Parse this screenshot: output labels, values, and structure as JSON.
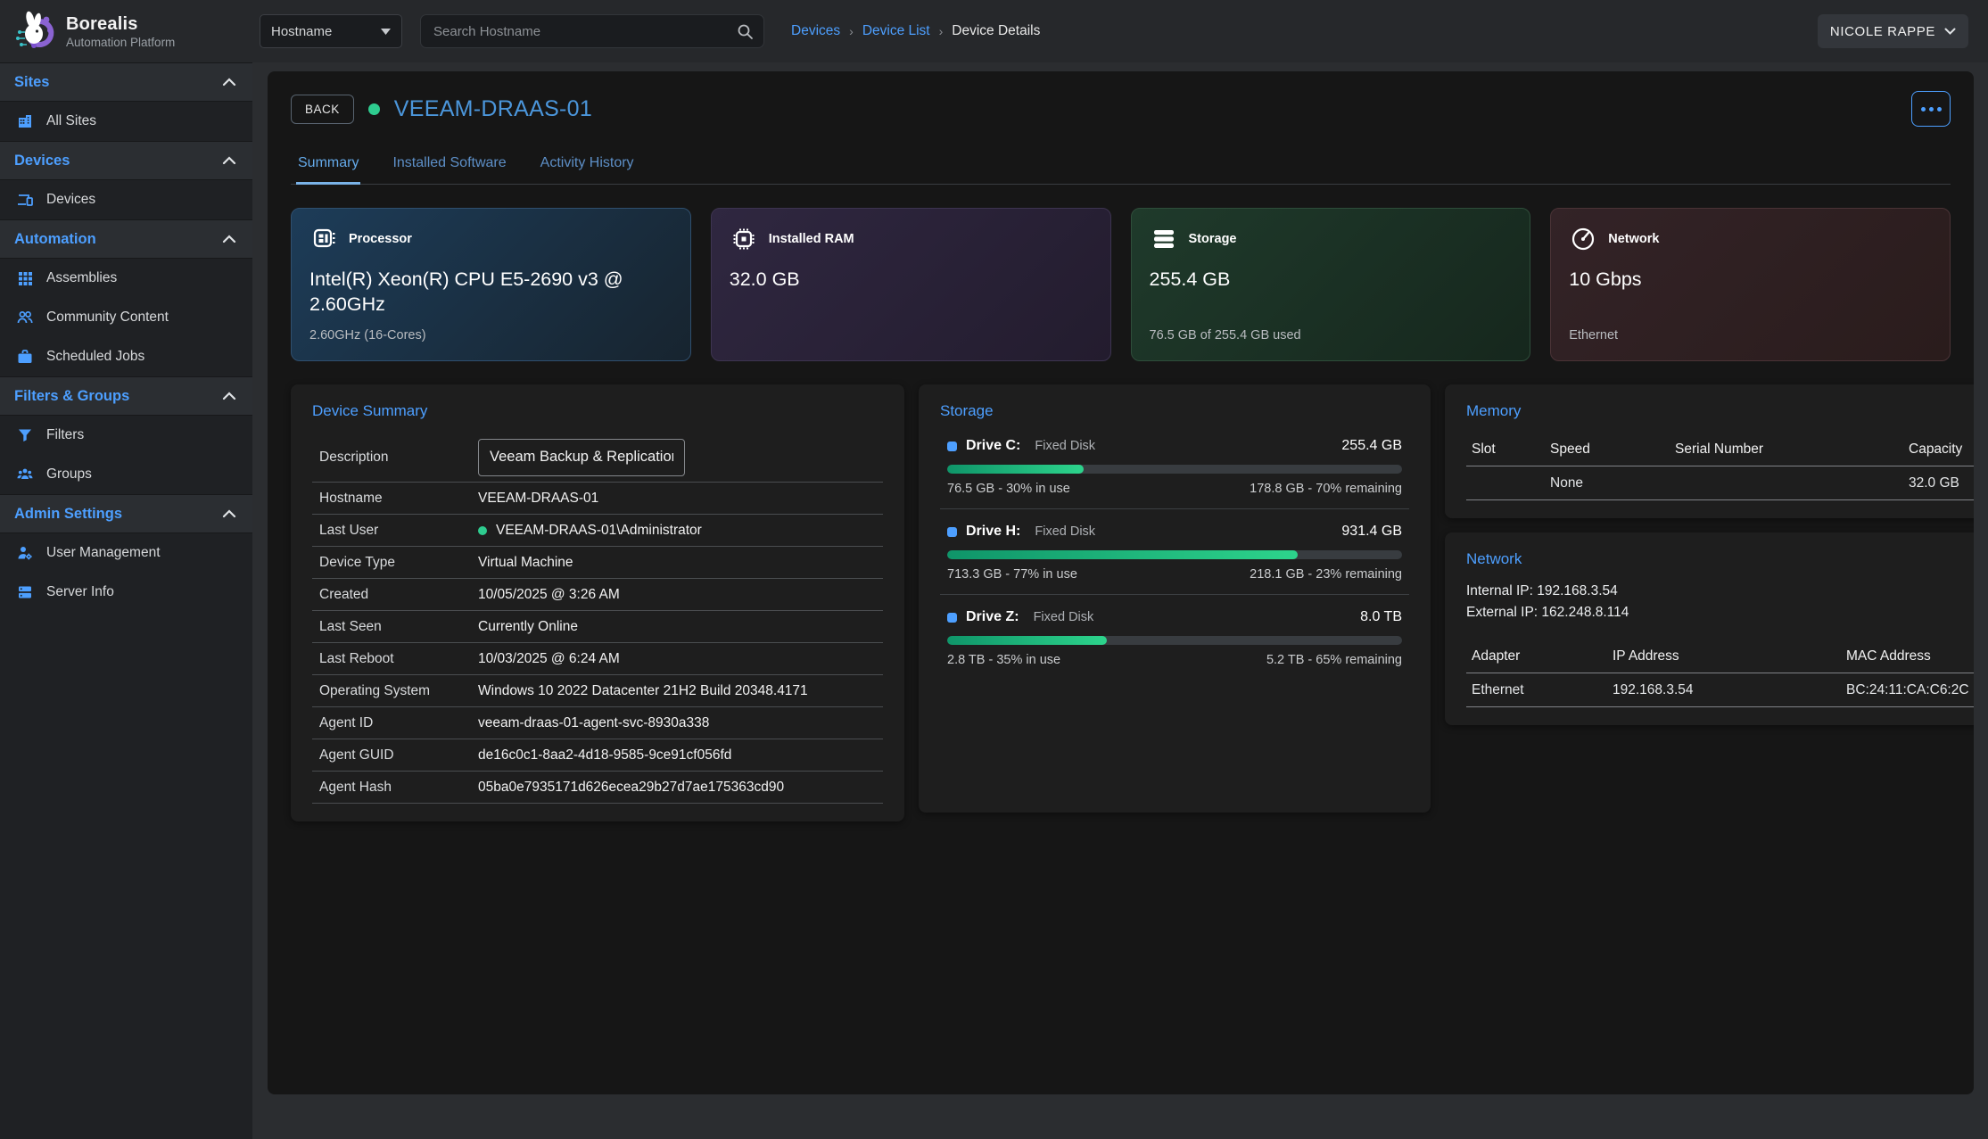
{
  "colors": {
    "accent_blue": "#4d9fff",
    "title_blue": "#4b96db",
    "status_green": "#2ecc8f",
    "progress_green_start": "#0f9569",
    "progress_green_end": "#2dd48c"
  },
  "brand": {
    "name": "Borealis",
    "subtitle": "Automation Platform"
  },
  "topbar": {
    "filter_select_value": "Hostname",
    "search_placeholder": "Search Hostname",
    "breadcrumb_separator": "›",
    "breadcrumbs": [
      {
        "label": "Devices"
      },
      {
        "label": "Device List"
      },
      {
        "label": "Device Details"
      }
    ],
    "user_name": "NICOLE RAPPE"
  },
  "sidebar": {
    "sections": [
      {
        "label": "Sites",
        "items": [
          {
            "icon": "building-icon",
            "label": "All Sites"
          }
        ]
      },
      {
        "label": "Devices",
        "items": [
          {
            "icon": "devices-icon",
            "label": "Devices"
          }
        ]
      },
      {
        "label": "Automation",
        "items": [
          {
            "icon": "grid-icon",
            "label": "Assemblies"
          },
          {
            "icon": "people-icon",
            "label": "Community Content"
          },
          {
            "icon": "briefcase-icon",
            "label": "Scheduled Jobs"
          }
        ]
      },
      {
        "label": "Filters & Groups",
        "items": [
          {
            "icon": "filter-icon",
            "label": "Filters"
          },
          {
            "icon": "groups-icon",
            "label": "Groups"
          }
        ]
      },
      {
        "label": "Admin Settings",
        "items": [
          {
            "icon": "user-gear-icon",
            "label": "User Management"
          },
          {
            "icon": "server-icon",
            "label": "Server Info"
          }
        ]
      }
    ]
  },
  "device": {
    "back_label": "BACK",
    "title": "VEEAM-DRAAS-01",
    "tabs": [
      {
        "label": "Summary"
      },
      {
        "label": "Installed Software"
      },
      {
        "label": "Activity History"
      }
    ],
    "active_tab": "Summary"
  },
  "stat_cards": [
    {
      "icon": "cpu-icon",
      "label": "Processor",
      "value": "Intel(R) Xeon(R) CPU E5-2690 v3 @ 2.60GHz",
      "footer": "2.60GHz (16-Cores)"
    },
    {
      "icon": "ram-chip-icon",
      "label": "Installed RAM",
      "value": "32.0 GB",
      "footer": ""
    },
    {
      "icon": "storage-stack-icon",
      "label": "Storage",
      "value": "255.4 GB",
      "footer": "76.5 GB of 255.4 GB used"
    },
    {
      "icon": "speedometer-icon",
      "label": "Network",
      "value": "10 Gbps",
      "footer": "Ethernet"
    }
  ],
  "device_summary": {
    "title": "Device Summary",
    "description_label": "Description",
    "description_value": "Veeam Backup & Replication",
    "rows": [
      {
        "label": "Hostname",
        "value": "VEEAM-DRAAS-01"
      },
      {
        "label": "Last User",
        "value": "VEEAM-DRAAS-01\\Administrator"
      },
      {
        "label": "Device Type",
        "value": "Virtual Machine"
      },
      {
        "label": "Created",
        "value": "10/05/2025 @ 3:26 AM"
      },
      {
        "label": "Last Seen",
        "value": "Currently Online"
      },
      {
        "label": "Last Reboot",
        "value": "10/03/2025 @ 6:24 AM"
      },
      {
        "label": "Operating System",
        "value": "Windows 10 2022 Datacenter 21H2 Build 20348.4171"
      },
      {
        "label": "Agent ID",
        "value": "veeam-draas-01-agent-svc-8930a338"
      },
      {
        "label": "Agent GUID",
        "value": "de16c0c1-8aa2-4d18-9585-9ce91cf056fd"
      },
      {
        "label": "Agent Hash",
        "value": "05ba0e7935171d626ecea29b27d7ae175363cd90"
      }
    ]
  },
  "storage_panel": {
    "title": "Storage",
    "drives": [
      {
        "name": "Drive C:",
        "type": "Fixed Disk",
        "size": "255.4 GB",
        "pct": 30,
        "used": "76.5 GB - 30% in use",
        "remaining": "178.8 GB - 70% remaining"
      },
      {
        "name": "Drive H:",
        "type": "Fixed Disk",
        "size": "931.4 GB",
        "pct": 77,
        "used": "713.3 GB - 77% in use",
        "remaining": "218.1 GB - 23% remaining"
      },
      {
        "name": "Drive Z:",
        "type": "Fixed Disk",
        "size": "8.0 TB",
        "pct": 35,
        "used": "2.8 TB - 35% in use",
        "remaining": "5.2 TB - 65% remaining"
      }
    ]
  },
  "memory_panel": {
    "title": "Memory",
    "headers": [
      "Slot",
      "Speed",
      "Serial Number",
      "Capacity"
    ],
    "rows": [
      {
        "slot": "",
        "speed": "None",
        "serial": "",
        "capacity": "32.0 GB"
      }
    ]
  },
  "network_panel": {
    "title": "Network",
    "internal_ip": "Internal IP: 192.168.3.54",
    "external_ip": "External IP: 162.248.8.114",
    "headers": [
      "Adapter",
      "IP Address",
      "MAC Address"
    ],
    "rows": [
      {
        "adapter": "Ethernet",
        "ip": "192.168.3.54",
        "mac": "BC:24:11:CA:C6:2C"
      }
    ]
  }
}
